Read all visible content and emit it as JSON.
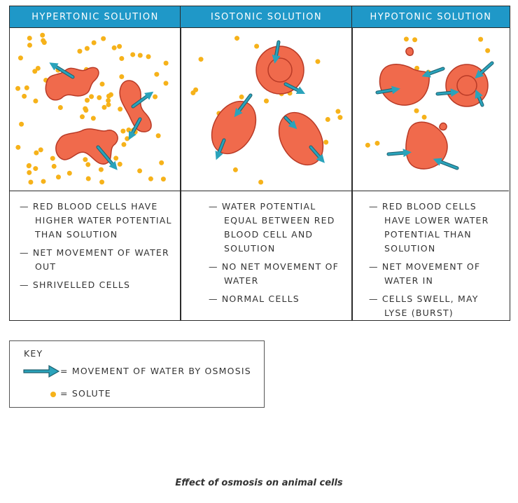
{
  "columns": [
    {
      "title": "HYPERTONIC SOLUTION",
      "points": [
        "— RED BLOOD CELLS HAVE HIGHER WATER POTENTIAL THAN SOLUTION",
        "— NET MOVEMENT OF WATER OUT",
        "— SHRIVELLED CELLS"
      ]
    },
    {
      "title": "ISOTONIC SOLUTION",
      "points": [
        "— WATER POTENTIAL EQUAL BETWEEN RED BLOOD CELL AND SOLUTION",
        "— NO NET MOVEMENT OF WATER",
        "— NORMAL CELLS"
      ]
    },
    {
      "title": "HYPOTONIC SOLUTION",
      "points": [
        "— RED BLOOD CELLS HAVE LOWER WATER POTENTIAL THAN SOLUTION",
        "— NET MOVEMENT OF WATER IN",
        "— CELLS SWELL, MAY LYSE (BURST)"
      ]
    }
  ],
  "key": {
    "title": "KEY",
    "items": [
      "= MOVEMENT OF WATER BY OSMOSIS",
      "= SOLUTE"
    ]
  },
  "caption": "Effect of osmosis on animal cells"
}
